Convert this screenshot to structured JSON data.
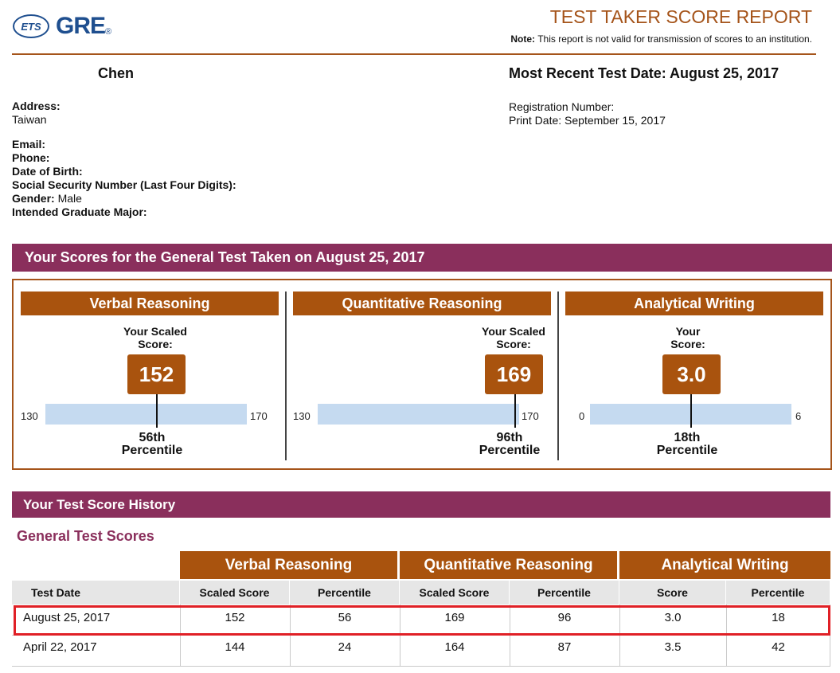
{
  "header": {
    "logo_badge": "ETS",
    "logo_word": "GRE",
    "logo_mark": "®",
    "title": "TEST TAKER SCORE REPORT",
    "note_label": "Note:",
    "note_text": "This report is not valid for transmission of scores to an institution."
  },
  "candidate": {
    "name": "Chen",
    "address_label": "Address:",
    "address_value": "Taiwan",
    "email_label": "Email:",
    "phone_label": "Phone:",
    "dob_label": "Date of Birth:",
    "ssn_label": "Social Security Number (Last Four Digits):",
    "gender_label": "Gender:",
    "gender_value": "Male",
    "major_label": "Intended Graduate Major:"
  },
  "report_meta": {
    "most_recent_label": "Most Recent Test Date: August 25, 2017",
    "registration_label": "Registration Number:",
    "print_date_label": "Print Date: September 15, 2017"
  },
  "scores_section": {
    "title": "Your Scores for the General Test Taken on August 25, 2017",
    "sections": [
      {
        "name": "Verbal Reasoning",
        "label_line1": "Your Scaled",
        "label_line2": "Score:",
        "score": "152",
        "min": "130",
        "max": "170",
        "position": 0.55,
        "percentile_line1": "56th",
        "percentile_line2": "Percentile"
      },
      {
        "name": "Quantitative Reasoning",
        "label_line1": "Your Scaled",
        "label_line2": "Score:",
        "score": "169",
        "min": "130",
        "max": "170",
        "position": 0.975,
        "percentile_line1": "96th",
        "percentile_line2": "Percentile"
      },
      {
        "name": "Analytical Writing",
        "label_line1": "Your",
        "label_line2": "Score:",
        "score": "3.0",
        "min": "0",
        "max": "6",
        "position": 0.5,
        "percentile_line1": "18th",
        "percentile_line2": "Percentile"
      }
    ]
  },
  "history": {
    "section_title": "Your Test Score History",
    "subtitle": "General Test Scores",
    "groups": [
      "Verbal Reasoning",
      "Quantitative Reasoning",
      "Analytical Writing"
    ],
    "columns": [
      "Test Date",
      "Scaled Score",
      "Percentile",
      "Scaled Score",
      "Percentile",
      "Score",
      "Percentile"
    ],
    "rows": [
      [
        "August 25, 2017",
        "152",
        "56",
        "169",
        "96",
        "3.0",
        "18"
      ],
      [
        "April 22, 2017",
        "144",
        "24",
        "164",
        "87",
        "3.5",
        "42"
      ]
    ]
  },
  "colors": {
    "accent_brown": "#a9530e",
    "accent_purple": "#8a2f5c",
    "bar_blue": "#c5daf0",
    "highlight_red": "#e02026"
  }
}
